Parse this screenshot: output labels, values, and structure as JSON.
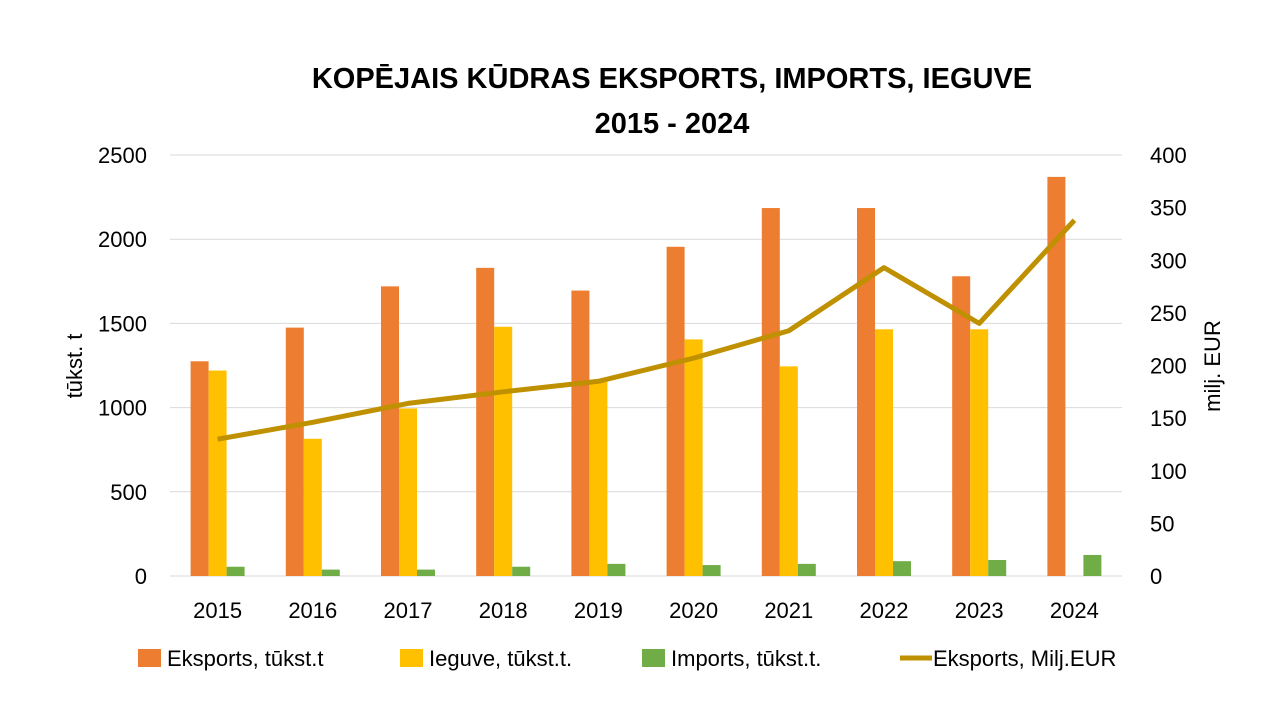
{
  "chart_data": {
    "type": "bar",
    "title_line1": "KOPĒJAIS KŪDRAS EKSPORTS, IMPORTS, IEGUVE",
    "title_line2": "2015 - 2024",
    "categories": [
      "2015",
      "2016",
      "2017",
      "2018",
      "2019",
      "2020",
      "2021",
      "2022",
      "2023",
      "2024"
    ],
    "ylabel": "tūkst. t",
    "y2label": "milj. EUR",
    "ylim": [
      0,
      2500
    ],
    "y2lim": [
      0,
      400
    ],
    "yticks": [
      "0",
      "500",
      "1000",
      "1500",
      "2000",
      "2500"
    ],
    "y2ticks": [
      "0",
      "50",
      "100",
      "150",
      "200",
      "250",
      "300",
      "350",
      "400"
    ],
    "grid": true,
    "legend_position": "bottom",
    "series": [
      {
        "name": "Eksports, tūkst.t",
        "kind": "bar",
        "axis": "left",
        "color": "#ED7D31",
        "values": [
          1275,
          1475,
          1720,
          1830,
          1695,
          1955,
          2185,
          2185,
          1780,
          2370
        ]
      },
      {
        "name": "Ieguve, tūkst.t.",
        "kind": "bar",
        "axis": "left",
        "color": "#FFC000",
        "values": [
          1220,
          815,
          995,
          1480,
          1160,
          1405,
          1245,
          1465,
          1465,
          null
        ]
      },
      {
        "name": "Imports, tūkst.t.",
        "kind": "bar",
        "axis": "left",
        "color": "#70AD47",
        "values": [
          55,
          38,
          38,
          55,
          72,
          65,
          72,
          88,
          95,
          125
        ]
      },
      {
        "name": "Eksports, Milj.EUR",
        "kind": "line",
        "axis": "right",
        "color": "#BF9000",
        "values": [
          130,
          146,
          164,
          175,
          185,
          207,
          233,
          293,
          240,
          338
        ]
      }
    ]
  }
}
